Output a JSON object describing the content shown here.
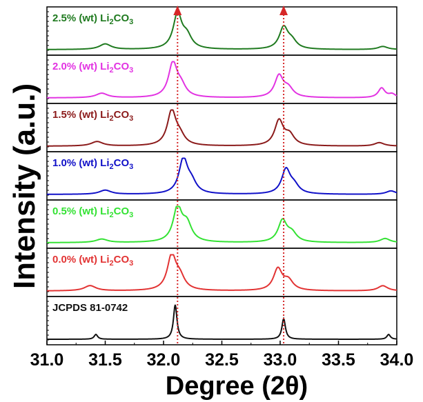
{
  "chart_data": {
    "type": "line",
    "title": "",
    "xlabel": "Degree (2θ)",
    "ylabel": "Intensity (a.u.)",
    "xlim": [
      31.0,
      34.0
    ],
    "x_ticks": [
      "31.0",
      "31.5",
      "32.0",
      "32.5",
      "33.0",
      "33.5",
      "34.0"
    ],
    "x_tick_values": [
      31.0,
      31.5,
      32.0,
      32.5,
      33.0,
      33.5,
      34.0
    ],
    "reference_lines": {
      "x": [
        32.12,
        33.03
      ],
      "color": "#d62728",
      "style": "dotted",
      "arrows": "up"
    },
    "series": [
      {
        "label": {
          "pre": "2.5% (wt) Li",
          "sub": "2",
          "post": "CO",
          "sub2": "3"
        },
        "color": "#1f7a1f",
        "peaks": [
          {
            "center": 31.5,
            "height": 0.16,
            "width": 0.06
          },
          {
            "center": 32.12,
            "height": 1.0,
            "width": 0.045
          },
          {
            "center": 32.2,
            "height": 0.35,
            "width": 0.05
          },
          {
            "center": 33.03,
            "height": 0.62,
            "width": 0.045
          },
          {
            "center": 33.1,
            "height": 0.22,
            "width": 0.05
          },
          {
            "center": 33.88,
            "height": 0.09,
            "width": 0.05
          }
        ]
      },
      {
        "label": {
          "pre": "2.0% (wt) Li",
          "sub": "2",
          "post": "CO",
          "sub2": "3"
        },
        "color": "#e233e2",
        "peaks": [
          {
            "center": 31.47,
            "height": 0.13,
            "width": 0.06
          },
          {
            "center": 32.08,
            "height": 0.98,
            "width": 0.045
          },
          {
            "center": 32.15,
            "height": 0.3,
            "width": 0.05
          },
          {
            "center": 32.99,
            "height": 0.62,
            "width": 0.045
          },
          {
            "center": 33.07,
            "height": 0.25,
            "width": 0.05
          },
          {
            "center": 33.87,
            "height": 0.28,
            "width": 0.035
          },
          {
            "center": 33.96,
            "height": 0.1,
            "width": 0.035
          }
        ]
      },
      {
        "label": {
          "pre": "1.5% (wt) Li",
          "sub": "2",
          "post": "CO",
          "sub2": "3"
        },
        "color": "#8b1a1a",
        "peaks": [
          {
            "center": 31.43,
            "height": 0.13,
            "width": 0.06
          },
          {
            "center": 32.07,
            "height": 1.0,
            "width": 0.045
          },
          {
            "center": 32.14,
            "height": 0.25,
            "width": 0.05
          },
          {
            "center": 32.99,
            "height": 0.72,
            "width": 0.045
          },
          {
            "center": 33.08,
            "height": 0.3,
            "width": 0.05
          },
          {
            "center": 33.85,
            "height": 0.1,
            "width": 0.05
          }
        ]
      },
      {
        "label": {
          "pre": "1.0% (wt) Li",
          "sub": "2",
          "post": "CO",
          "sub2": "3"
        },
        "color": "#1010c8",
        "peaks": [
          {
            "center": 31.5,
            "height": 0.12,
            "width": 0.06
          },
          {
            "center": 32.17,
            "height": 1.0,
            "width": 0.045
          },
          {
            "center": 32.24,
            "height": 0.3,
            "width": 0.05
          },
          {
            "center": 33.05,
            "height": 0.7,
            "width": 0.045
          },
          {
            "center": 33.12,
            "height": 0.22,
            "width": 0.05
          },
          {
            "center": 33.95,
            "height": 0.1,
            "width": 0.05
          }
        ]
      },
      {
        "label": {
          "pre": "0.5% (wt) Li",
          "sub": "2",
          "post": "CO",
          "sub2": "3"
        },
        "color": "#33e233",
        "peaks": [
          {
            "center": 31.47,
            "height": 0.1,
            "width": 0.06
          },
          {
            "center": 32.12,
            "height": 0.98,
            "width": 0.045
          },
          {
            "center": 32.2,
            "height": 0.5,
            "width": 0.05
          },
          {
            "center": 33.02,
            "height": 0.62,
            "width": 0.045
          },
          {
            "center": 33.1,
            "height": 0.25,
            "width": 0.05
          },
          {
            "center": 33.9,
            "height": 0.12,
            "width": 0.05
          }
        ]
      },
      {
        "label": {
          "pre": "0.0% (wt) Li",
          "sub": "2",
          "post": "CO",
          "sub2": "3"
        },
        "color": "#e23333",
        "peaks": [
          {
            "center": 31.37,
            "height": 0.15,
            "width": 0.06
          },
          {
            "center": 32.07,
            "height": 1.0,
            "width": 0.045
          },
          {
            "center": 32.14,
            "height": 0.35,
            "width": 0.05
          },
          {
            "center": 32.98,
            "height": 0.62,
            "width": 0.045
          },
          {
            "center": 33.07,
            "height": 0.28,
            "width": 0.05
          },
          {
            "center": 33.88,
            "height": 0.15,
            "width": 0.05
          }
        ]
      },
      {
        "label": {
          "pre": "JCPDS 81-0742",
          "sub": "",
          "post": "",
          "sub2": ""
        },
        "color": "#111111",
        "peaks": [
          {
            "center": 31.42,
            "height": 0.14,
            "width": 0.018
          },
          {
            "center": 32.1,
            "height": 1.0,
            "width": 0.018
          },
          {
            "center": 33.03,
            "height": 0.6,
            "width": 0.018
          },
          {
            "center": 33.93,
            "height": 0.14,
            "width": 0.018
          }
        ]
      }
    ]
  }
}
